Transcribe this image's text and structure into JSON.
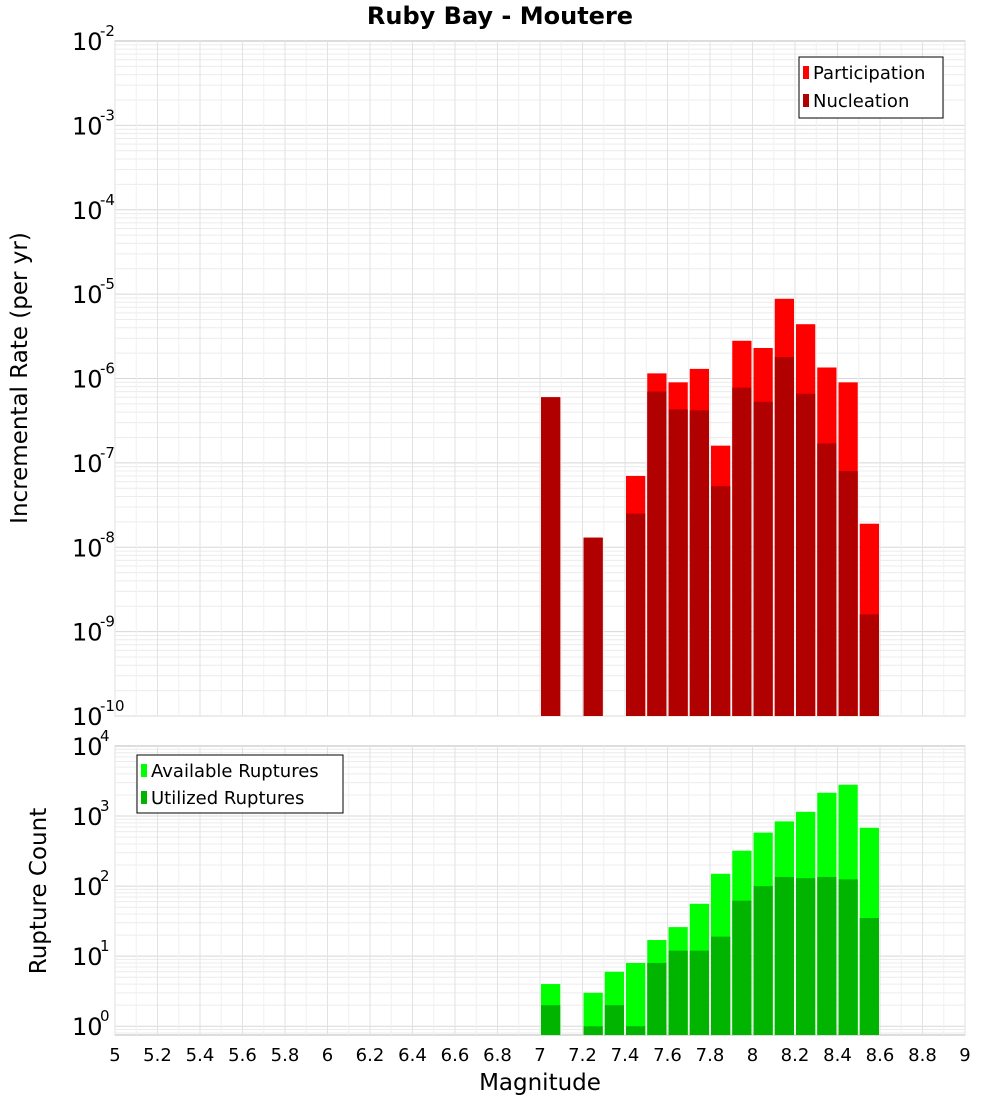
{
  "chart_data": [
    {
      "type": "bar",
      "title": "Ruby Bay - Moutere",
      "xlabel": "Magnitude",
      "ylabel": "Incremental Rate (per yr)",
      "y_scale": "log",
      "ylim": [
        1e-10,
        0.01
      ],
      "xlim": [
        5,
        9
      ],
      "grid": true,
      "legend_position": "top-right",
      "x_ticks": [
        "5",
        "5.2",
        "5.4",
        "5.6",
        "5.8",
        "6",
        "6.2",
        "6.4",
        "6.6",
        "6.8",
        "7",
        "7.2",
        "7.4",
        "7.6",
        "7.8",
        "8",
        "8.2",
        "8.4",
        "8.6",
        "8.8",
        "9"
      ],
      "y_ticks": [
        {
          "base": "10",
          "exp": "-10"
        },
        {
          "base": "10",
          "exp": "-9"
        },
        {
          "base": "10",
          "exp": "-8"
        },
        {
          "base": "10",
          "exp": "-7"
        },
        {
          "base": "10",
          "exp": "-6"
        },
        {
          "base": "10",
          "exp": "-5"
        },
        {
          "base": "10",
          "exp": "-4"
        },
        {
          "base": "10",
          "exp": "-3"
        },
        {
          "base": "10",
          "exp": "-2"
        }
      ],
      "x": [
        7.05,
        7.15,
        7.25,
        7.35,
        7.45,
        7.55,
        7.65,
        7.75,
        7.85,
        7.95,
        8.05,
        8.15,
        8.25,
        8.35,
        8.45,
        8.55
      ],
      "series": [
        {
          "name": "Participation",
          "color": "#ff0000",
          "values": [
            6e-07,
            null,
            1.3e-08,
            null,
            7e-08,
            1.15e-06,
            9e-07,
            1.3e-06,
            1.6e-07,
            2.8e-06,
            2.3e-06,
            8.8e-06,
            4.4e-06,
            1.35e-06,
            9e-07,
            1.9e-08
          ]
        },
        {
          "name": "Nucleation",
          "color": "#b00000",
          "values": [
            6e-07,
            null,
            1.3e-08,
            null,
            2.5e-08,
            7e-07,
            4.3e-07,
            4.2e-07,
            5.3e-08,
            7.8e-07,
            5.3e-07,
            1.8e-06,
            6.6e-07,
            1.7e-07,
            8e-08,
            1.6e-09
          ]
        }
      ]
    },
    {
      "type": "bar",
      "xlabel": "Magnitude",
      "ylabel": "Rupture Count",
      "y_scale": "log",
      "ylim": [
        0.75,
        10000
      ],
      "grid": true,
      "legend_position": "top-left",
      "y_ticks": [
        {
          "base": "10",
          "exp": "0"
        },
        {
          "base": "10",
          "exp": "1"
        },
        {
          "base": "10",
          "exp": "2"
        },
        {
          "base": "10",
          "exp": "3"
        },
        {
          "base": "10",
          "exp": "4"
        }
      ],
      "x": [
        7.05,
        7.15,
        7.25,
        7.35,
        7.45,
        7.55,
        7.65,
        7.75,
        7.85,
        7.95,
        8.05,
        8.15,
        8.25,
        8.35,
        8.45,
        8.55
      ],
      "series": [
        {
          "name": "Available Ruptures",
          "color": "#00ff00",
          "values": [
            4,
            null,
            3,
            6,
            8,
            17,
            26,
            56,
            150,
            320,
            580,
            840,
            1150,
            2150,
            2800,
            680
          ]
        },
        {
          "name": "Utilized Ruptures",
          "color": "#00b400",
          "values": [
            2,
            null,
            1,
            2,
            1,
            8,
            12,
            12,
            19,
            62,
            100,
            135,
            130,
            135,
            125,
            35
          ]
        }
      ]
    }
  ]
}
